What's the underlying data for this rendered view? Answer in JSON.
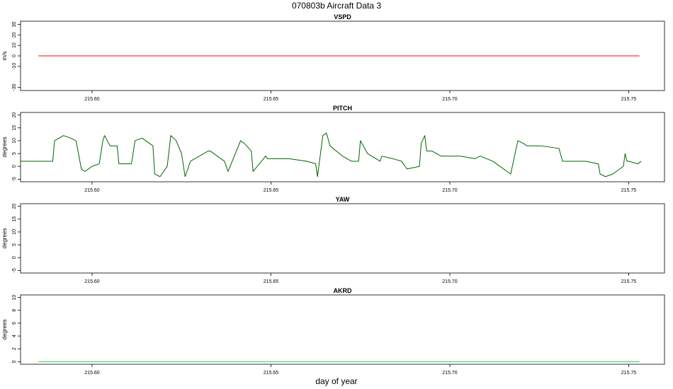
{
  "title": "070803b   Aircraft Data 3",
  "xlabel": "day of year",
  "colors": {
    "vspd": "#ff0000",
    "pitch": "#006400",
    "yaw": "#006400",
    "akrd": "#2ecc40"
  },
  "chart_data": [
    {
      "type": "line",
      "title": "VSPD",
      "ylabel": "m/s",
      "xlim": [
        215.58,
        215.76
      ],
      "ylim": [
        -33,
        33
      ],
      "yticks": [
        -30,
        -10,
        0,
        10,
        20,
        30
      ],
      "ytick_labels": [
        "-30",
        "-10",
        "0",
        "10",
        "20",
        "30"
      ],
      "xticks": [
        215.6,
        215.65,
        215.7,
        215.75
      ],
      "xtick_labels": [
        "215.60",
        "215.65",
        "215.70",
        "215.75"
      ],
      "series": [
        {
          "color": "#ff0000",
          "x": [
            215.585,
            215.753
          ],
          "y": [
            0,
            0
          ]
        }
      ]
    },
    {
      "type": "line",
      "title": "PITCH",
      "ylabel": "degrees",
      "xlim": [
        215.58,
        215.76
      ],
      "ylim": [
        -6,
        21
      ],
      "yticks": [
        -5,
        0,
        5,
        10,
        15,
        20
      ],
      "ytick_labels": [
        "-5",
        "0",
        "5",
        "10",
        "15",
        "20"
      ],
      "xticks": [
        215.6,
        215.65,
        215.7,
        215.75
      ],
      "xtick_labels": [
        "215.60",
        "215.65",
        "215.70",
        "215.75"
      ],
      "series": [
        {
          "color": "#006400",
          "x": [
            215.58,
            215.585,
            215.588,
            215.589,
            215.5895,
            215.592,
            215.594,
            215.5955,
            215.597,
            215.598,
            215.6,
            215.602,
            215.603,
            215.6035,
            215.605,
            215.607,
            215.6075,
            215.611,
            215.612,
            215.614,
            215.616,
            215.617,
            215.6175,
            215.619,
            215.621,
            215.622,
            215.6235,
            215.625,
            215.626,
            215.6275,
            215.63,
            215.6325,
            215.633,
            215.637,
            215.638,
            215.6415,
            215.6425,
            215.6445,
            215.645,
            215.6485,
            215.649,
            215.655,
            215.66,
            215.6625,
            215.663,
            215.6645,
            215.6655,
            215.6665,
            215.67,
            215.6725,
            215.6745,
            215.675,
            215.677,
            215.6805,
            215.681,
            215.684,
            215.6865,
            215.688,
            215.6915,
            215.692,
            215.693,
            215.6935,
            215.695,
            215.6975,
            215.698,
            215.703,
            215.707,
            215.7085,
            215.712,
            215.717,
            215.719,
            215.7205,
            215.7215,
            215.7225,
            215.7255,
            215.7305,
            215.7315,
            215.738,
            215.7415,
            215.742,
            215.7435,
            215.7455,
            215.7465,
            215.7485,
            215.749,
            215.7495,
            215.75,
            215.7525,
            215.7535
          ],
          "y": [
            2,
            2,
            2,
            2,
            10,
            12,
            11,
            10,
            -1,
            -2,
            0,
            1,
            10,
            12,
            8,
            8,
            1,
            1,
            10,
            11,
            9,
            8,
            -3,
            -4,
            0,
            12,
            10,
            5,
            -4,
            2,
            4,
            6,
            6,
            2,
            -2,
            10,
            9,
            6,
            -2,
            4,
            3,
            3,
            2,
            1,
            -4,
            12,
            13,
            8,
            4,
            2,
            2,
            10,
            5,
            2,
            4,
            3,
            2,
            -1,
            0,
            9,
            12,
            6,
            6,
            4,
            4,
            4,
            3,
            4,
            2,
            -3,
            10,
            9,
            8,
            8,
            8,
            7,
            2,
            2,
            1,
            -3,
            -4,
            -3,
            -2,
            0,
            5,
            2,
            2,
            1,
            2
          ]
        }
      ]
    },
    {
      "type": "line",
      "title": "YAW",
      "ylabel": "degrees",
      "xlim": [
        215.58,
        215.76
      ],
      "ylim": [
        -6,
        21
      ],
      "yticks": [
        -5,
        0,
        5,
        10,
        15,
        20
      ],
      "ytick_labels": [
        "-5",
        "0",
        "5",
        "10",
        "15",
        "20"
      ],
      "xticks": [
        215.6,
        215.65,
        215.7,
        215.75
      ],
      "xtick_labels": [
        "215.60",
        "215.65",
        "215.70",
        "215.75"
      ],
      "series": []
    },
    {
      "type": "line",
      "title": "AKRD",
      "ylabel": "degrees",
      "xlim": [
        215.58,
        215.76
      ],
      "ylim": [
        -0.4,
        10.4
      ],
      "yticks": [
        0,
        2,
        4,
        6,
        8,
        10
      ],
      "ytick_labels": [
        "0",
        "2",
        "4",
        "6",
        "8",
        "10"
      ],
      "xticks": [
        215.6,
        215.65,
        215.7,
        215.75
      ],
      "xtick_labels": [
        "215.60",
        "215.65",
        "215.70",
        "215.75"
      ],
      "series": [
        {
          "color": "#2ecc40",
          "x": [
            215.585,
            215.753
          ],
          "y": [
            0,
            0
          ]
        }
      ]
    }
  ]
}
